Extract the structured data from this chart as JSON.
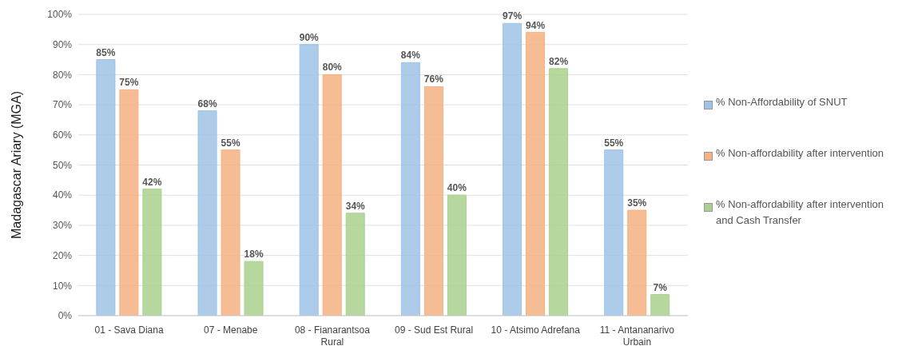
{
  "chart_data": {
    "type": "bar",
    "ylabel": "Madagascar Ariary (MGA)",
    "categories": [
      "01 - Sava Diana",
      "07 - Menabe",
      "08 - Fianarantsoa Rural",
      "09 - Sud Est Rural",
      "10 - Atsimo Adrefana",
      "11 - Antananarivo Urbain"
    ],
    "series": [
      {
        "name": "% Non-Affordability of SNUT",
        "color": "#9dc3e6",
        "values": [
          85,
          68,
          90,
          84,
          97,
          55
        ],
        "value_labels": [
          "85%",
          "68%",
          "90%",
          "84%",
          "97%",
          "55%"
        ]
      },
      {
        "name": "% Non-affordability after intervention",
        "color": "#f4b183",
        "values": [
          75,
          55,
          80,
          76,
          94,
          35
        ],
        "value_labels": [
          "75%",
          "55%",
          "80%",
          "76%",
          "94%",
          "35%"
        ]
      },
      {
        "name": "% Non-affordability after intervention and Cash Transfer",
        "color": "#a9d18e",
        "values": [
          42,
          18,
          34,
          40,
          82,
          7
        ],
        "value_labels": [
          "42%",
          "18%",
          "34%",
          "40%",
          "82%",
          "7%"
        ]
      }
    ],
    "ylim": [
      0,
      100
    ],
    "yticks": [
      {
        "value": 0,
        "label": "0%"
      },
      {
        "value": 10,
        "label": "10%"
      },
      {
        "value": 20,
        "label": "20%"
      },
      {
        "value": 30,
        "label": "30%"
      },
      {
        "value": 40,
        "label": "40%"
      },
      {
        "value": 50,
        "label": "50%"
      },
      {
        "value": 60,
        "label": "60%"
      },
      {
        "value": 70,
        "label": "70%"
      },
      {
        "value": 80,
        "label": "80%"
      },
      {
        "value": 90,
        "label": "90%"
      },
      {
        "value": 100,
        "label": "100%"
      }
    ],
    "grid": "y",
    "legend": "right"
  }
}
